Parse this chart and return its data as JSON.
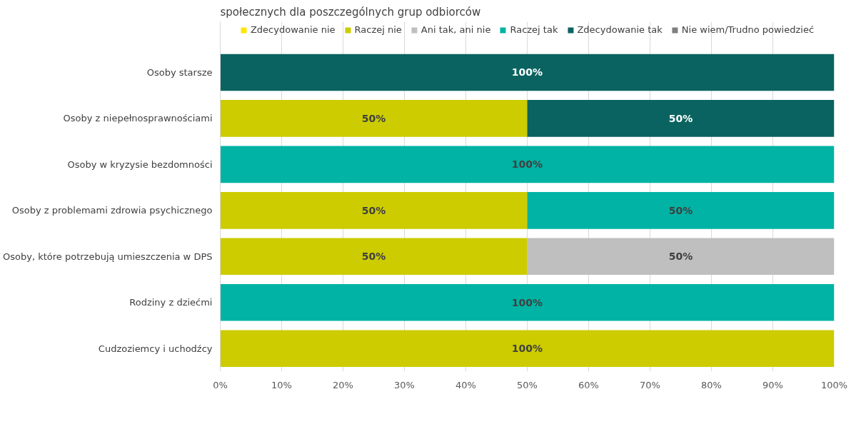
{
  "chart_data": {
    "type": "bar",
    "orientation": "horizontal",
    "stacked": true,
    "title": "społecznych dla poszczególnych grup odbiorców",
    "categories": [
      "Osoby starsze",
      "Osoby z niepełnosprawnościami",
      "Osoby w kryzysie bezdomności",
      "Osoby z problemami zdrowia psychicznego",
      "Osoby, które potrzebują umieszczenia w DPS",
      "Rodziny z dziećmi",
      "Cudzoziemcy i uchodźcy"
    ],
    "series": [
      {
        "name": "Zdecydowanie nie",
        "color": "#ffe600",
        "values": [
          0,
          0,
          0,
          0,
          0,
          0,
          0
        ],
        "value_labels": [
          null,
          null,
          null,
          null,
          null,
          null,
          null
        ]
      },
      {
        "name": "Raczej nie",
        "color": "#cccc00",
        "values": [
          0,
          50,
          0,
          50,
          50,
          0,
          100
        ],
        "value_labels": [
          null,
          "50%",
          null,
          "50%",
          "50%",
          null,
          "100%"
        ]
      },
      {
        "name": "Ani tak, ani nie",
        "color": "#bfbfbf",
        "values": [
          0,
          0,
          0,
          0,
          50,
          0,
          0
        ],
        "value_labels": [
          null,
          null,
          null,
          null,
          "50%",
          null,
          null
        ]
      },
      {
        "name": "Raczej tak",
        "color": "#00b3a4",
        "values": [
          0,
          0,
          100,
          50,
          0,
          100,
          0
        ],
        "value_labels": [
          null,
          null,
          "100%",
          "50%",
          null,
          "100%",
          null
        ]
      },
      {
        "name": "Zdecydowanie tak",
        "color": "#0a6360",
        "values": [
          100,
          50,
          0,
          0,
          0,
          0,
          0
        ],
        "value_labels": [
          "100%",
          "50%",
          null,
          null,
          null,
          null,
          null
        ]
      },
      {
        "name": "Nie wiem/Trudno powiedzieć",
        "color": "#7f7f7f",
        "values": [
          0,
          0,
          0,
          0,
          0,
          0,
          0
        ],
        "value_labels": [
          null,
          null,
          null,
          null,
          null,
          null,
          null
        ]
      }
    ],
    "xlim": [
      0,
      100
    ],
    "xticks": [
      {
        "value": 0,
        "label": "0%"
      },
      {
        "value": 10,
        "label": "10%"
      },
      {
        "value": 20,
        "label": "20%"
      },
      {
        "value": 30,
        "label": "30%"
      },
      {
        "value": 40,
        "label": "40%"
      },
      {
        "value": 50,
        "label": "50%"
      },
      {
        "value": 60,
        "label": "60%"
      },
      {
        "value": 70,
        "label": "70%"
      },
      {
        "value": 80,
        "label": "80%"
      },
      {
        "value": 90,
        "label": "90%"
      },
      {
        "value": 100,
        "label": "100%"
      }
    ],
    "grid": "x",
    "legend": "top"
  }
}
